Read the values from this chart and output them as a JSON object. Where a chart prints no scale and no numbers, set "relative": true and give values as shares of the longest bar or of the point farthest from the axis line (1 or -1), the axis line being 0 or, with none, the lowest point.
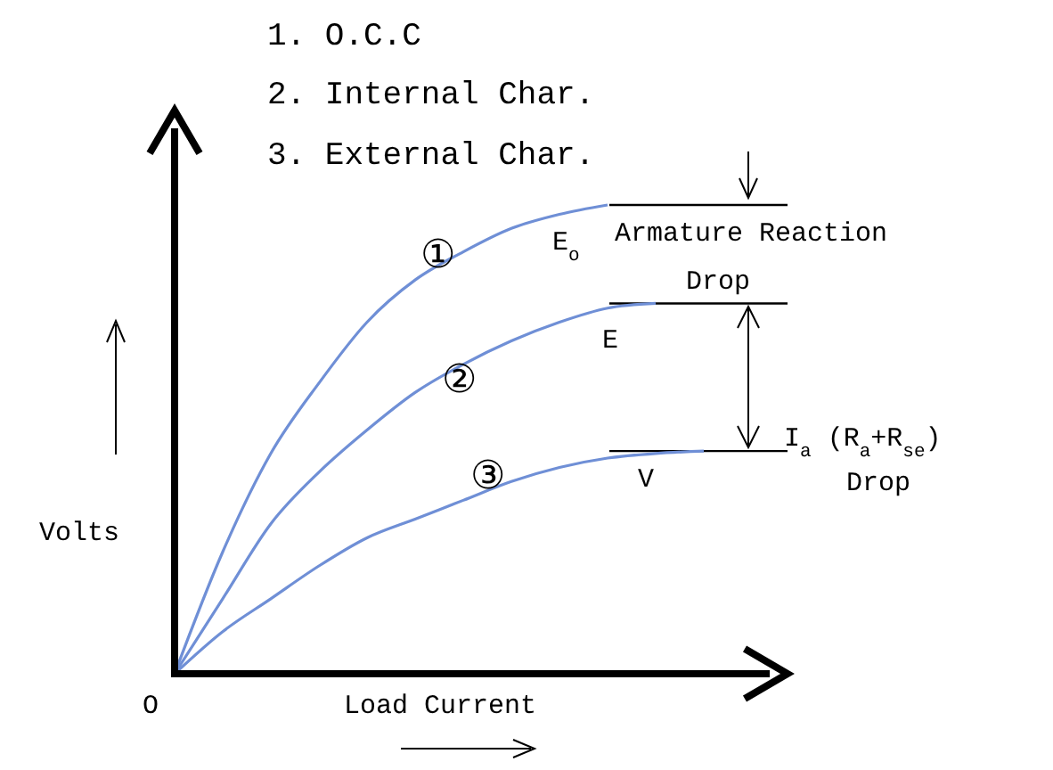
{
  "chart_data": {
    "type": "line",
    "relative": true,
    "xlabel": "Load Current",
    "ylabel": "Volts",
    "categories": [
      null,
      null,
      null,
      null,
      null,
      null,
      null,
      null,
      null,
      null,
      null,
      null
    ],
    "series": [
      {
        "name": "①",
        "color": "#6f8fd6",
        "values": [
          0,
          0.26,
          0.47,
          0.62,
          0.75,
          0.84,
          0.9,
          0.95,
          0.98,
          1,
          null,
          null
        ]
      },
      {
        "name": "②",
        "color": "#6f8fd6",
        "values": [
          0,
          0.16,
          0.32,
          0.43,
          0.52,
          0.6,
          0.66,
          0.71,
          0.75,
          0.78,
          0.79,
          null
        ]
      },
      {
        "name": "③",
        "color": "#6f8fd6",
        "values": [
          0,
          0.09,
          0.16,
          0.23,
          0.29,
          0.33,
          0.37,
          0.41,
          0.44,
          0.46,
          0.47,
          0.475
        ]
      }
    ],
    "ref_lines": [
      {
        "axis": "y",
        "value": 1,
        "color": "#000000"
      },
      {
        "axis": "y",
        "value": 0.79,
        "color": "#000000"
      },
      {
        "axis": "y",
        "value": 0.475,
        "color": "#000000"
      }
    ],
    "annotations": [
      "1. O.C.C",
      "2. Internal Char.",
      "3. External Char.",
      "E$_{o}$",
      "E",
      "V",
      "Armature Reaction",
      "Drop",
      "I$_{a}$ (R$_{a}$+R$_{se}$)",
      "Drop",
      "O"
    ]
  }
}
